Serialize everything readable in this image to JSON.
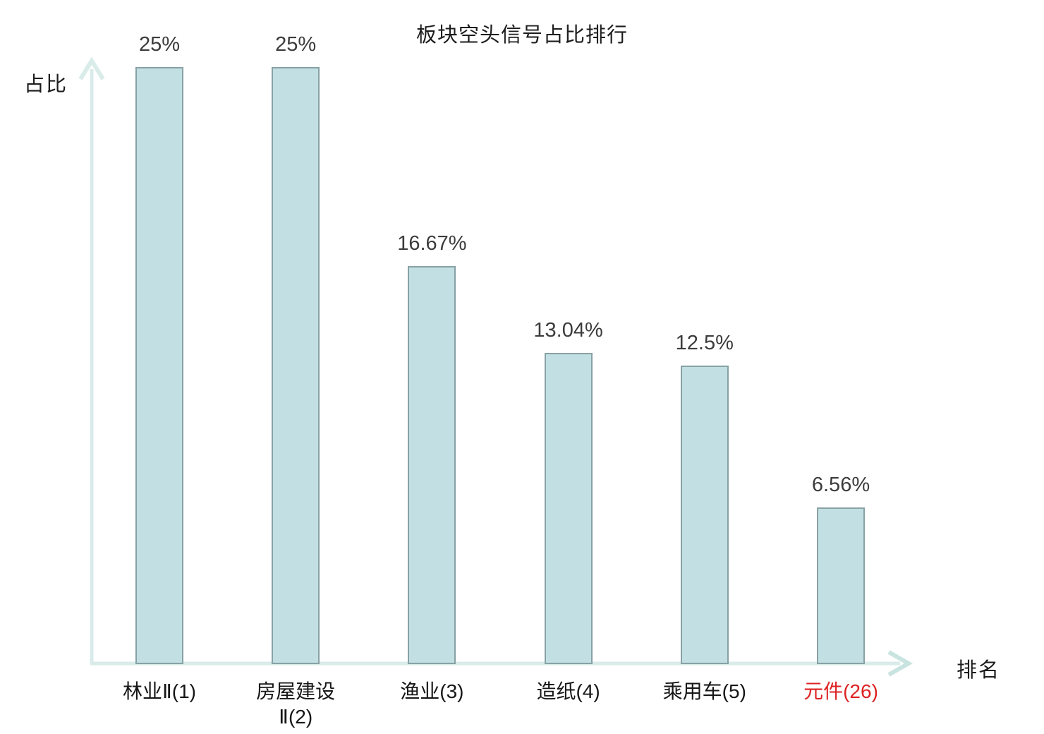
{
  "title": "板块空头信号占比排行",
  "axes": {
    "y_label": "占比",
    "x_label": "排名"
  },
  "colors": {
    "bar_fill": "#c2e0e3",
    "bar_border": "#88a1a5",
    "axis_line": "#d9ecea",
    "axis_arrow": "#c9e4e0",
    "value_text": "#3c3c3c",
    "category_text": "#161616",
    "highlight_text": "#dd2222"
  },
  "chart_data": {
    "type": "bar",
    "title": "板块空头信号占比排行",
    "xlabel": "排名",
    "ylabel": "占比",
    "categories": [
      "林业Ⅱ(1)",
      "房屋建设Ⅱ(2)",
      "渔业(3)",
      "造纸(4)",
      "乘用车(5)",
      "元件(26)"
    ],
    "categories_display": [
      "林业Ⅱ(1)",
      "房屋建设\nⅡ(2)",
      "渔业(3)",
      "造纸(4)",
      "乘用车(5)",
      "元件(26)"
    ],
    "values": [
      25,
      25,
      16.67,
      13.04,
      12.5,
      6.56
    ],
    "value_labels": [
      "25%",
      "25%",
      "16.67%",
      "13.04%",
      "12.5%",
      "6.56%"
    ],
    "highlight_index": 5,
    "ylim": [
      0,
      25
    ],
    "grid": false,
    "legend": null
  }
}
